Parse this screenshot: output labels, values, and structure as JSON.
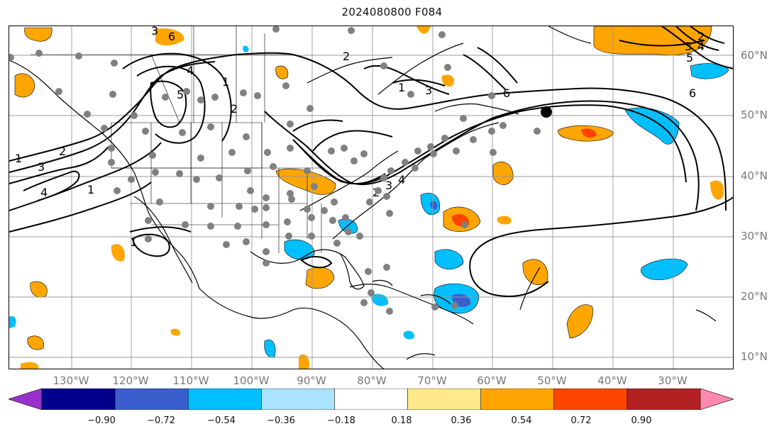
{
  "title": "2024080800 F084",
  "longitude_labels": [
    "130°W",
    "120°W",
    "110°W",
    "100°W",
    "90°W",
    "80°W",
    "70°W",
    "60°W",
    "50°W",
    "40°W",
    "30°W"
  ],
  "latitude_labels": [
    "60°N",
    "50°N",
    "40°N",
    "30°N",
    "20°N",
    "10°N"
  ],
  "colorbar": {
    "tick_labels": [
      "−0.90",
      "−0.72",
      "−0.54",
      "−0.36",
      "−0.18",
      "0.18",
      "0.36",
      "0.54",
      "0.72",
      "0.90"
    ],
    "colors": [
      "#9932cc",
      "#00008b",
      "#3a5fcd",
      "#00bfff",
      "#aae3ff",
      "#ffffff",
      "#ffe98a",
      "#ffa500",
      "#ff4500",
      "#b22222",
      "#ff88b0"
    ]
  },
  "contour_labels": [
    "1",
    "2",
    "3",
    "4",
    "5",
    "6",
    "1",
    "2",
    "3",
    "4",
    "1",
    "2",
    "3",
    "2",
    "3",
    "4",
    "5",
    "6",
    "1",
    "2",
    "3",
    "4",
    "6",
    "1"
  ],
  "marked_point_color": "#000000",
  "station_dot_color": "#808080",
  "shading_colors": {
    "positive_low": "#ffa500",
    "positive_mid": "#ff4500",
    "negative_low": "#00bfff",
    "negative_mid": "#3a5fcd"
  }
}
